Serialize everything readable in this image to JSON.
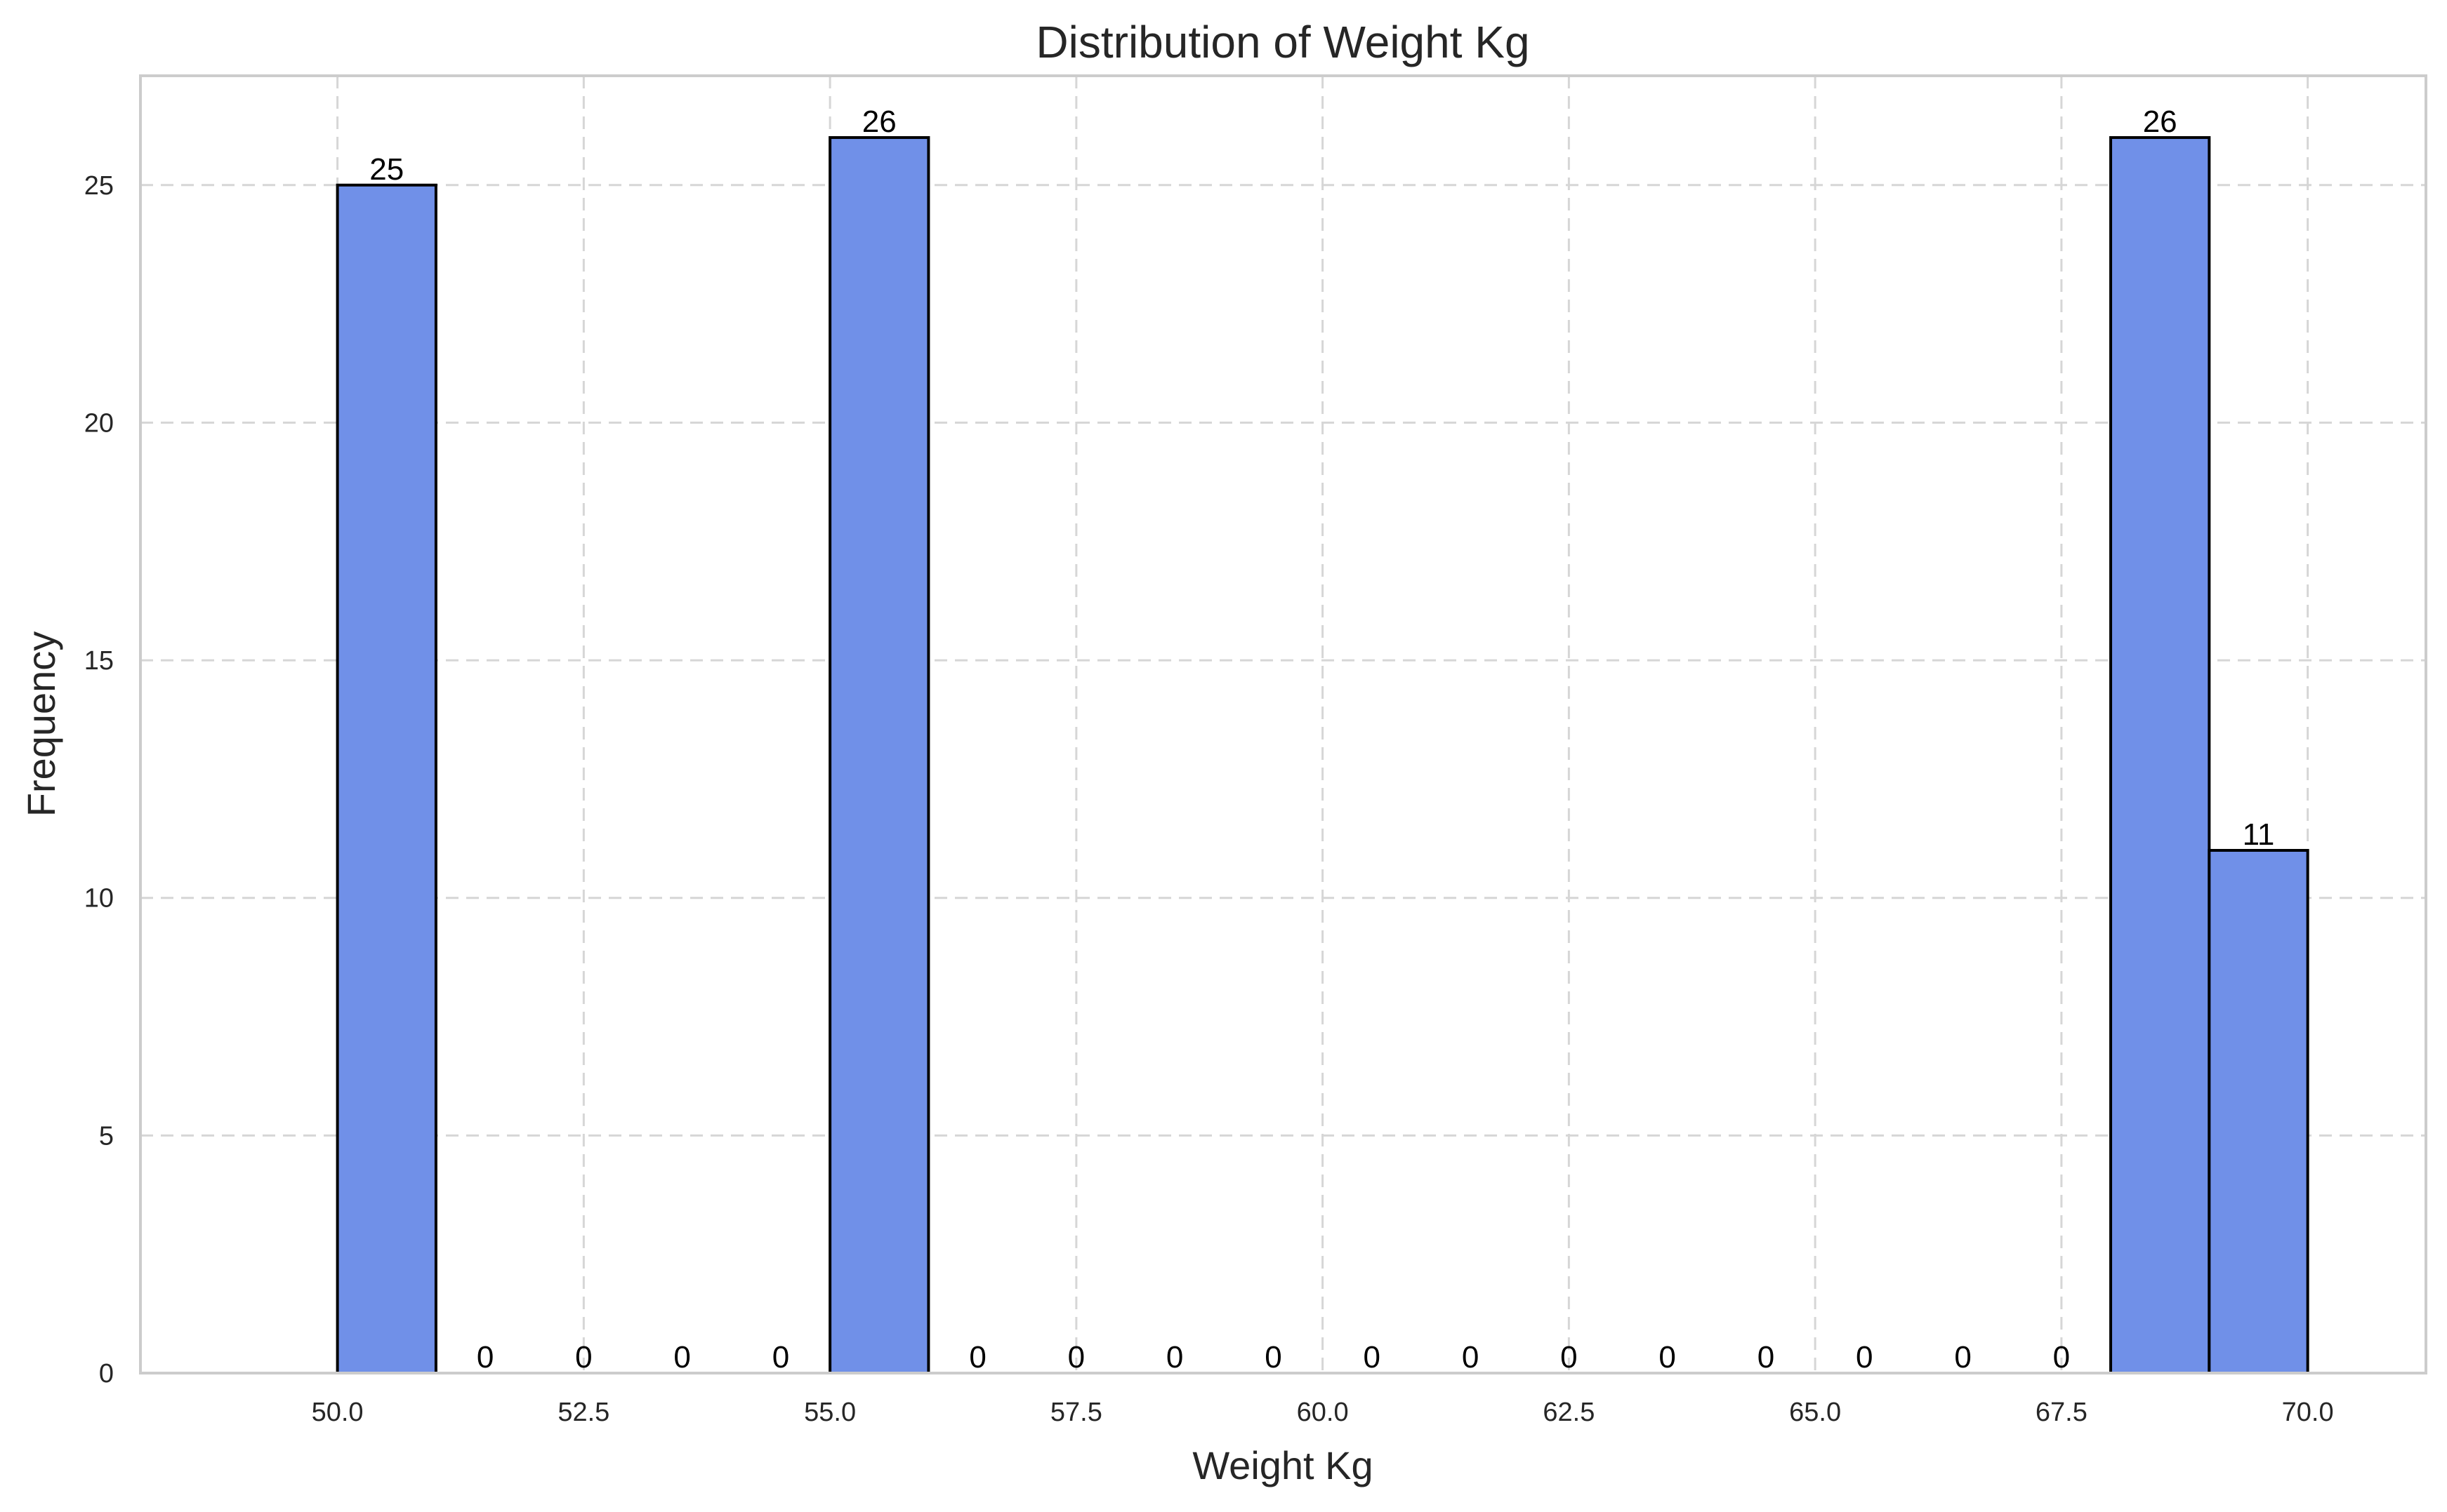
{
  "chart_data": {
    "type": "bar",
    "title": "Distribution of Weight Kg",
    "xlabel": "Weight Kg",
    "ylabel": "Frequency",
    "xlim": [
      48,
      71.2
    ],
    "ylim": [
      0,
      27.3
    ],
    "xticks": [
      "50.0",
      "52.5",
      "55.0",
      "57.5",
      "60.0",
      "62.5",
      "65.0",
      "67.5",
      "70.0"
    ],
    "xtick_values": [
      50.0,
      52.5,
      55.0,
      57.5,
      60.0,
      62.5,
      65.0,
      67.5,
      70.0
    ],
    "yticks": [
      0,
      5,
      10,
      15,
      20,
      25
    ],
    "grid": true,
    "bar_color": "#7090e8",
    "bar_edge_color": "#000000",
    "bins": [
      {
        "start": 50,
        "end": 51,
        "count": 25
      },
      {
        "start": 51,
        "end": 52,
        "count": 0
      },
      {
        "start": 52,
        "end": 53,
        "count": 0
      },
      {
        "start": 53,
        "end": 54,
        "count": 0
      },
      {
        "start": 54,
        "end": 55,
        "count": 0
      },
      {
        "start": 55,
        "end": 56,
        "count": 26
      },
      {
        "start": 56,
        "end": 57,
        "count": 0
      },
      {
        "start": 57,
        "end": 58,
        "count": 0
      },
      {
        "start": 58,
        "end": 59,
        "count": 0
      },
      {
        "start": 59,
        "end": 60,
        "count": 0
      },
      {
        "start": 60,
        "end": 61,
        "count": 0
      },
      {
        "start": 61,
        "end": 62,
        "count": 0
      },
      {
        "start": 62,
        "end": 63,
        "count": 0
      },
      {
        "start": 63,
        "end": 64,
        "count": 0
      },
      {
        "start": 64,
        "end": 65,
        "count": 0
      },
      {
        "start": 65,
        "end": 66,
        "count": 0
      },
      {
        "start": 66,
        "end": 67,
        "count": 0
      },
      {
        "start": 67,
        "end": 68,
        "count": 0
      },
      {
        "start": 68,
        "end": 69,
        "count": 26
      },
      {
        "start": 69,
        "end": 70,
        "count": 11
      }
    ]
  }
}
